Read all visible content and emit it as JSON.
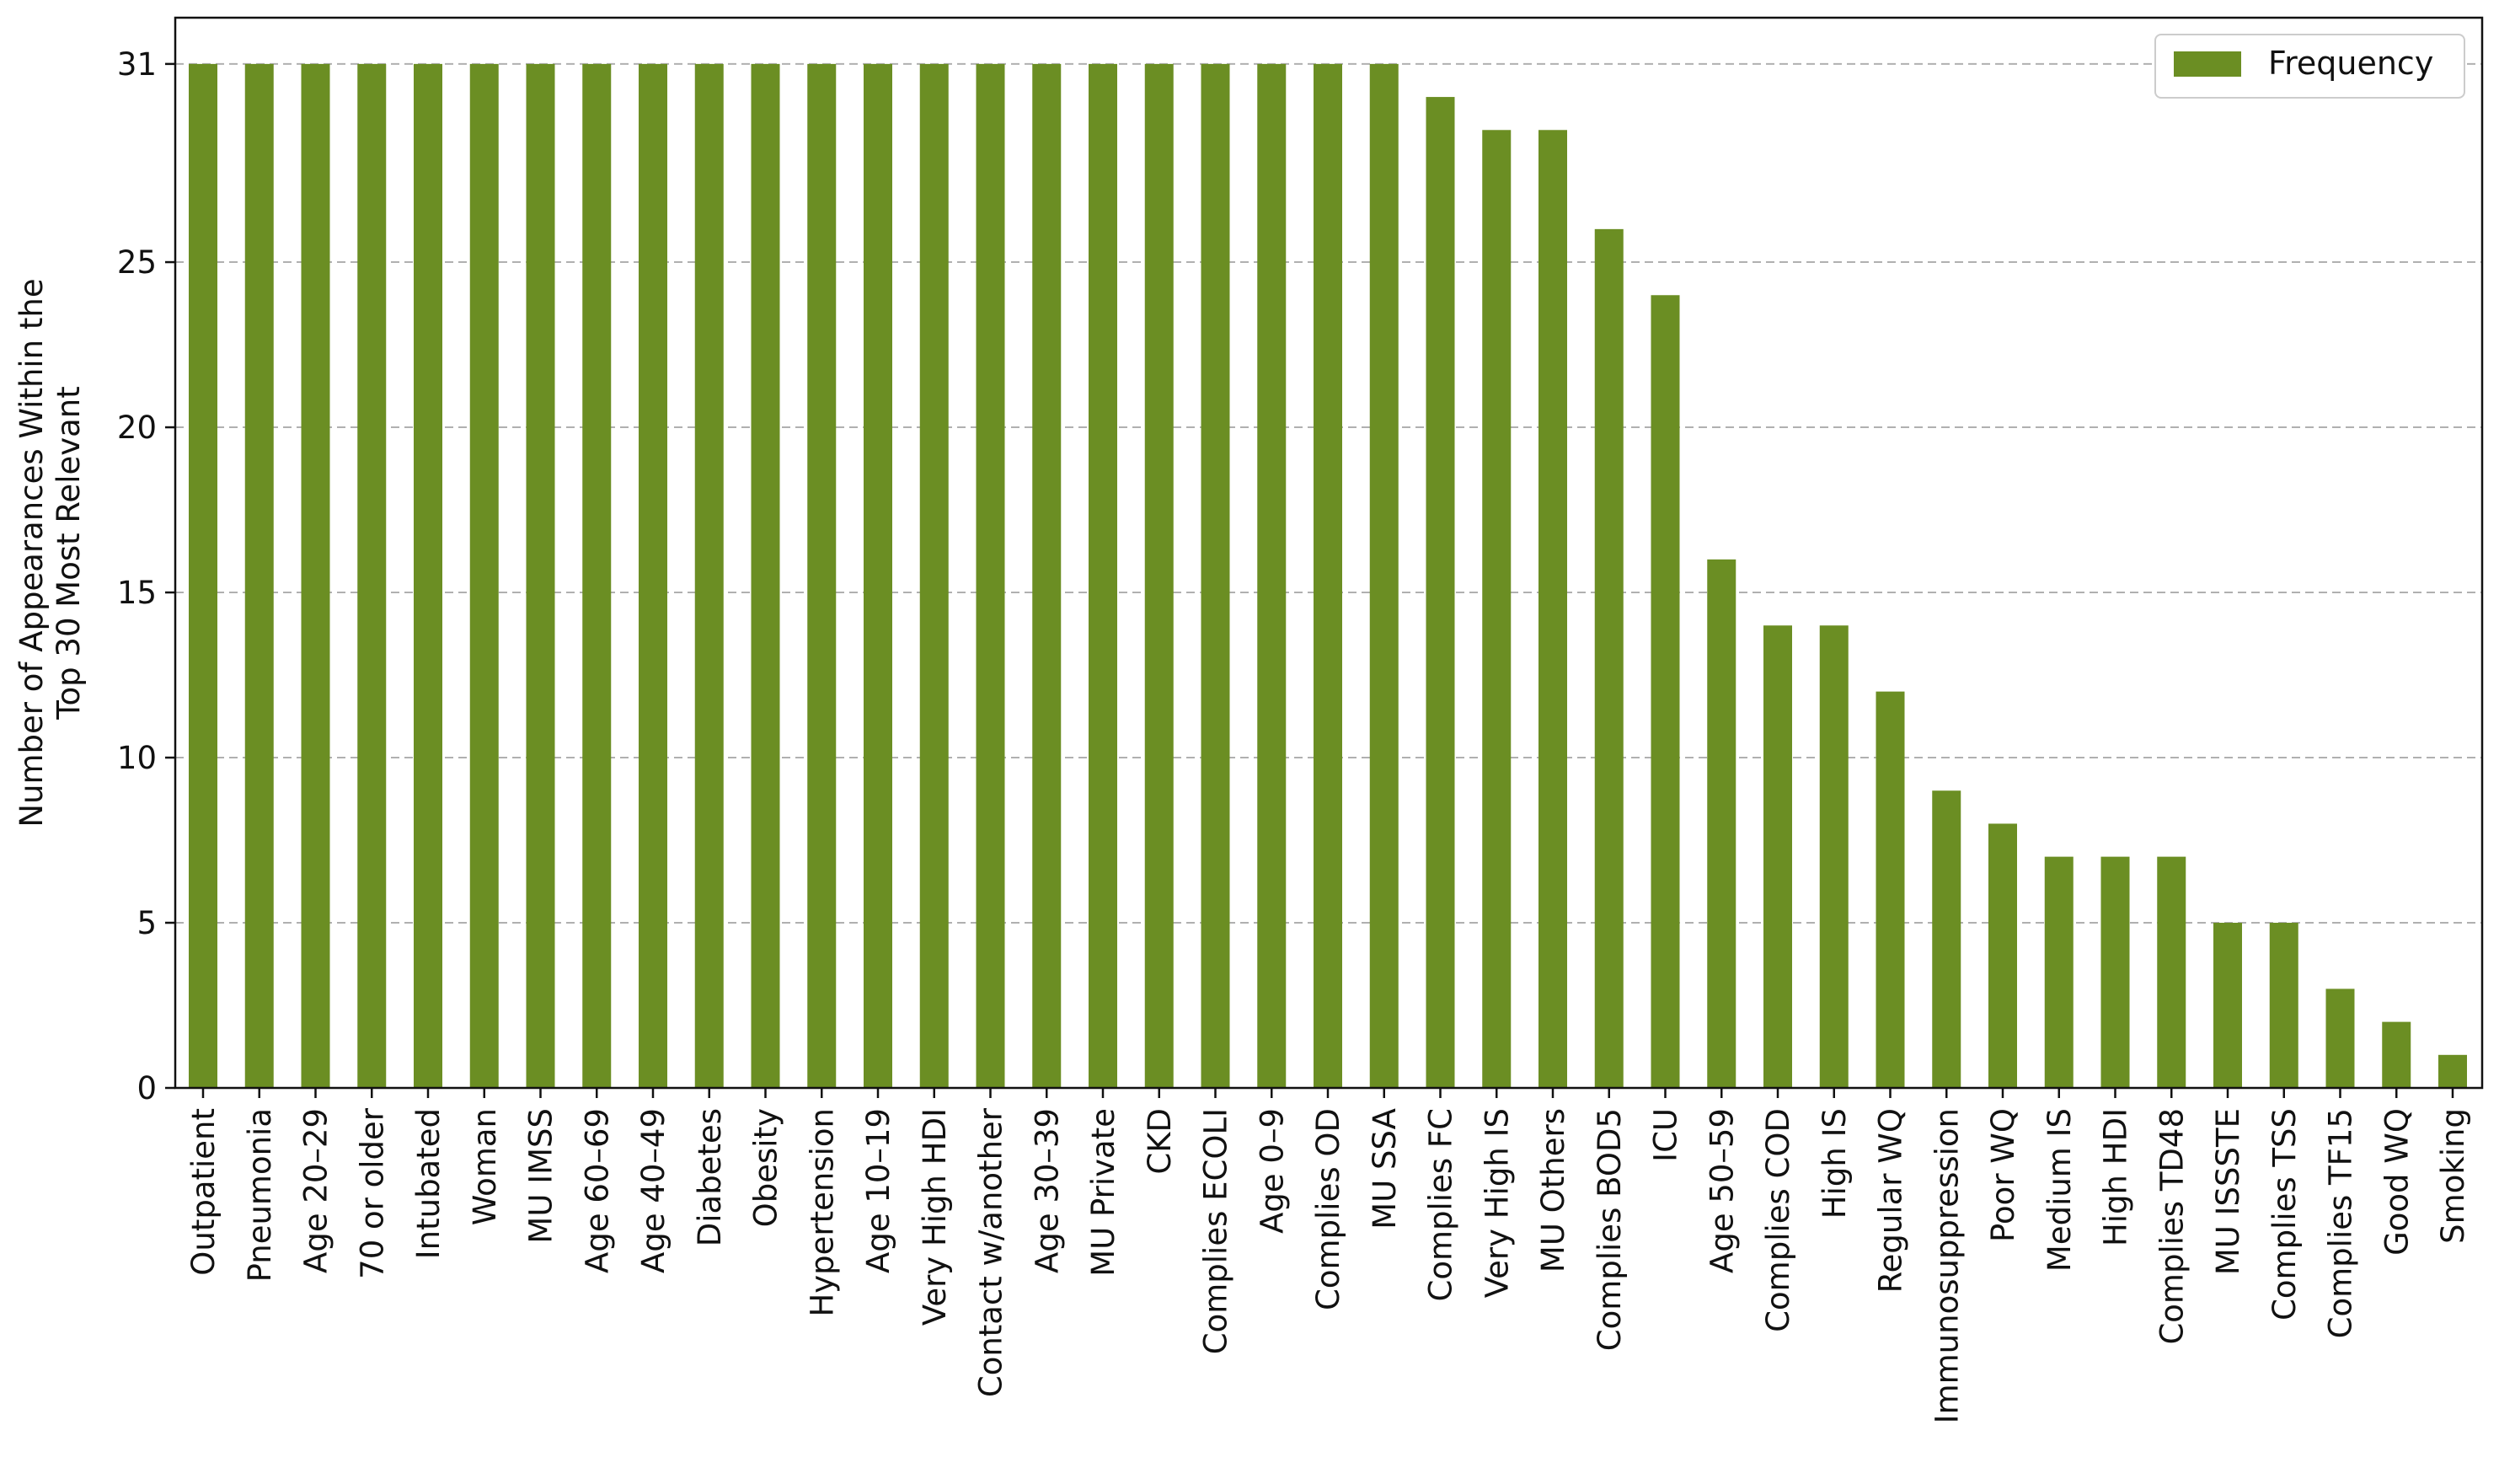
{
  "chart_data": {
    "type": "bar",
    "categories": [
      "Outpatient",
      "Pneumonia",
      "Age 20–29",
      "70 or older",
      "Intubated",
      "Woman",
      "MU IMSS",
      "Age 60–69",
      "Age 40–49",
      "Diabetes",
      "Obesity",
      "Hypertension",
      "Age 10–19",
      "Very High HDI",
      "Contact w/another",
      "Age 30–39",
      "MU Private",
      "CKD",
      "Complies ECOLI",
      "Age 0–9",
      "Complies OD",
      "MU SSA",
      "Complies FC",
      "Very High IS",
      "MU Others",
      "Complies BOD5",
      "ICU",
      "Age 50–59",
      "Complies COD",
      "High IS",
      "Regular WQ",
      "Immunosuppression",
      "Poor WQ",
      "Medium IS",
      "High HDI",
      "Complies TD48",
      "MU ISSSTE",
      "Complies TSS",
      "Complies TF15",
      "Good WQ",
      "Smoking"
    ],
    "series": [
      {
        "name": "Frequency",
        "values": [
          31,
          31,
          31,
          31,
          31,
          31,
          31,
          31,
          31,
          31,
          31,
          31,
          31,
          31,
          31,
          31,
          31,
          31,
          31,
          31,
          31,
          31,
          30,
          29,
          29,
          26,
          24,
          16,
          14,
          14,
          12,
          9,
          8,
          7,
          7,
          7,
          5,
          5,
          3,
          2,
          1
        ],
        "color": "#6b8e23"
      }
    ],
    "xlabel": "",
    "ylabel": "Number of Appearances Within the\nTop 30 Most Relevant",
    "ylim": [
      0,
      32.4
    ],
    "yticks": [
      0,
      5,
      10,
      15,
      20,
      25,
      31
    ],
    "grid": "horizontal dashed",
    "legend_position": "top-right"
  }
}
